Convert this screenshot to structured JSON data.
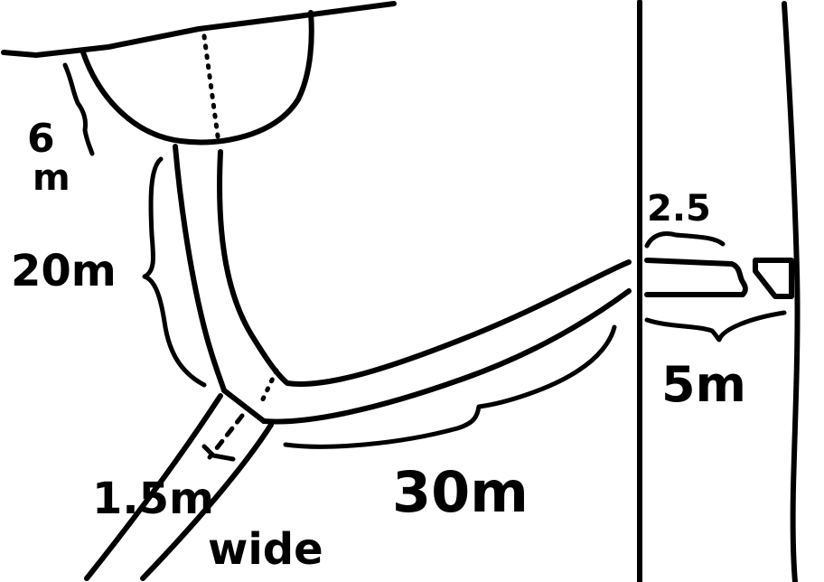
{
  "labels": {
    "pond_depth_number": "6",
    "pond_depth_unit": "m",
    "vertical_path_length": "20m",
    "width_value": "1.5m",
    "width_word": "wide",
    "diagonal_path_length": "30m",
    "bridge_width": "2.5",
    "bridge_length": "5m"
  }
}
